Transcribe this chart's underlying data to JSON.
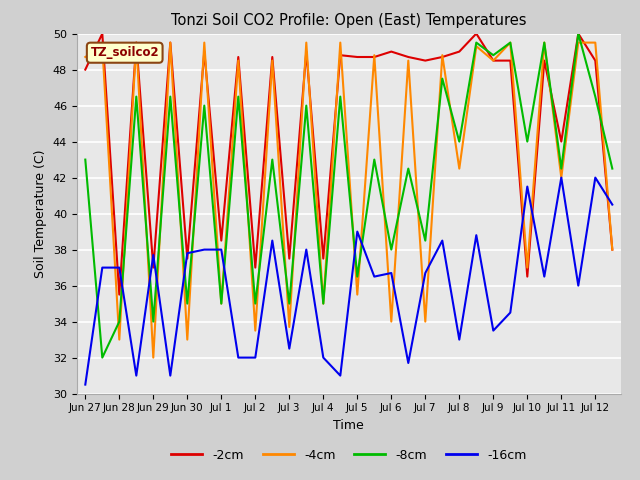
{
  "title": "Tonzi Soil CO2 Profile: Open (East) Temperatures",
  "xlabel": "Time",
  "ylabel": "Soil Temperature (C)",
  "ylim": [
    30,
    50
  ],
  "legend_label": "TZ_soilco2",
  "legend_items": [
    "-2cm",
    "-4cm",
    "-8cm",
    "-16cm"
  ],
  "legend_colors": [
    "#dd0000",
    "#ff8800",
    "#00bb00",
    "#0000ee"
  ],
  "tick_labels": [
    "Jun 27",
    "Jun 28",
    "Jun 29",
    "Jun 30",
    "Jul 1",
    "Jul 2",
    "Jul 3",
    "Jul 4",
    "Jul 5",
    "Jul 6",
    "Jul 7",
    "Jul 8",
    "Jul 9",
    "Jul 10",
    "Jul 11",
    "Jul 12"
  ],
  "yticks": [
    30,
    32,
    34,
    36,
    38,
    40,
    42,
    44,
    46,
    48,
    50
  ],
  "series": {
    "m2cm": [
      48.0,
      50.0,
      35.5,
      49.5,
      37.0,
      49.5,
      37.5,
      49.0,
      38.5,
      48.7,
      37.0,
      48.7,
      37.5,
      49.0,
      37.5,
      48.8,
      48.7,
      48.7,
      49.0,
      48.7,
      48.5,
      48.7,
      49.0,
      50.0,
      48.5,
      48.5,
      36.5,
      48.5,
      44.0,
      50.0,
      48.5,
      38.0
    ],
    "m4cm": [
      48.7,
      49.3,
      33.0,
      49.5,
      32.0,
      49.5,
      33.0,
      49.5,
      35.0,
      48.5,
      33.5,
      48.5,
      33.7,
      49.5,
      35.0,
      49.5,
      35.5,
      48.8,
      34.0,
      48.5,
      34.0,
      48.8,
      42.5,
      49.3,
      48.5,
      49.5,
      37.0,
      49.5,
      42.0,
      49.5,
      49.5,
      38.0
    ],
    "m8cm": [
      43.0,
      32.0,
      34.0,
      46.5,
      34.0,
      46.5,
      35.0,
      46.0,
      35.0,
      46.5,
      35.0,
      43.0,
      35.0,
      46.0,
      35.0,
      46.5,
      36.5,
      43.0,
      38.0,
      42.5,
      38.5,
      47.5,
      44.0,
      49.5,
      48.8,
      49.5,
      44.0,
      49.5,
      42.5,
      50.0,
      46.5,
      42.5
    ],
    "m16cm": [
      30.5,
      37.0,
      37.0,
      31.0,
      37.7,
      31.0,
      37.8,
      38.0,
      38.0,
      32.0,
      32.0,
      38.5,
      32.5,
      38.0,
      32.0,
      31.0,
      39.0,
      36.5,
      36.7,
      31.7,
      36.7,
      38.5,
      33.0,
      38.8,
      33.5,
      34.5,
      41.5,
      36.5,
      42.0,
      36.0,
      42.0,
      40.5
    ]
  }
}
